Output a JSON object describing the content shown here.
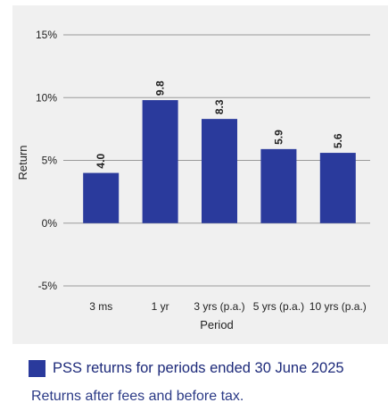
{
  "colors": {
    "bar": "#2a3a9c",
    "legend_text": "#1d2a7a",
    "note_text": "#2b3a86",
    "panel": "#f0f0f0"
  },
  "chart_data": {
    "type": "bar",
    "categories": [
      "3 ms",
      "1 yr",
      "3 yrs (p.a.)",
      "5 yrs (p.a.)",
      "10 yrs (p.a.)"
    ],
    "values": [
      4.0,
      9.8,
      8.3,
      5.9,
      5.6
    ],
    "data_labels": [
      "4.0",
      "9.8",
      "8.3",
      "5.9",
      "5.6"
    ],
    "xlabel": "Period",
    "ylabel": "Return",
    "ylim": [
      -5,
      15
    ],
    "yticks": [
      15,
      10,
      5,
      0,
      -5
    ],
    "ytick_labels": [
      "15%",
      "10%",
      "5%",
      "0%",
      "-5%"
    ],
    "grid": true,
    "legend": {
      "label": "PSS returns for periods ended 30 June 2025",
      "placement": "bottom-left"
    }
  },
  "note": "Returns after fees and before tax."
}
